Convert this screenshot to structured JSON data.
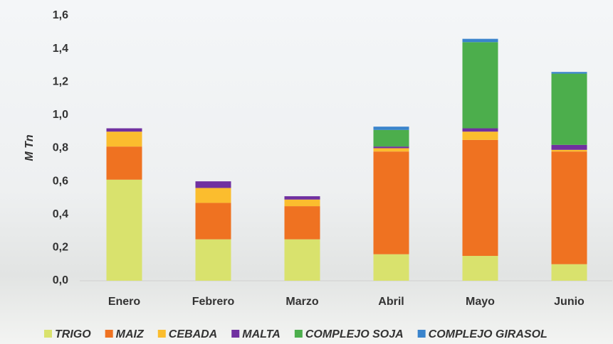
{
  "chart_data": {
    "type": "stacked-bar",
    "y_label": "M Tn",
    "categories": [
      "Enero",
      "Febrero",
      "Marzo",
      "Abril",
      "Mayo",
      "Junio"
    ],
    "series": [
      {
        "name": "TRIGO",
        "color": "#d9e26d",
        "values": [
          0.61,
          0.25,
          0.25,
          0.16,
          0.15,
          0.1
        ]
      },
      {
        "name": "MAIZ",
        "color": "#ef7221",
        "values": [
          0.2,
          0.22,
          0.2,
          0.62,
          0.7,
          0.68
        ]
      },
      {
        "name": "CEBADA",
        "color": "#fbbd2e",
        "values": [
          0.09,
          0.09,
          0.04,
          0.02,
          0.05,
          0.01
        ]
      },
      {
        "name": "MALTA",
        "color": "#7030a0",
        "values": [
          0.02,
          0.04,
          0.02,
          0.01,
          0.02,
          0.03
        ]
      },
      {
        "name": "COMPLEJO SOJA",
        "color": "#4cae4c",
        "values": [
          0,
          0,
          0,
          0.1,
          0.52,
          0.43
        ]
      },
      {
        "name": "COMPLEJO GIRASOL",
        "color": "#3a84cc",
        "values": [
          0,
          0,
          0,
          0.02,
          0.02,
          0.01
        ]
      }
    ],
    "ylim": [
      0,
      1.6
    ],
    "yticks": [
      {
        "value": 0,
        "label": "0,0"
      },
      {
        "value": 0.2,
        "label": "0,2"
      },
      {
        "value": 0.4,
        "label": "0,4"
      },
      {
        "value": 0.6,
        "label": "0,6"
      },
      {
        "value": 0.8,
        "label": "0,8"
      },
      {
        "value": 1.0,
        "label": "1,0"
      },
      {
        "value": 1.2,
        "label": "1,2"
      },
      {
        "value": 1.4,
        "label": "1,4"
      },
      {
        "value": 1.6,
        "label": "1,6"
      }
    ],
    "legend": "bottom"
  }
}
